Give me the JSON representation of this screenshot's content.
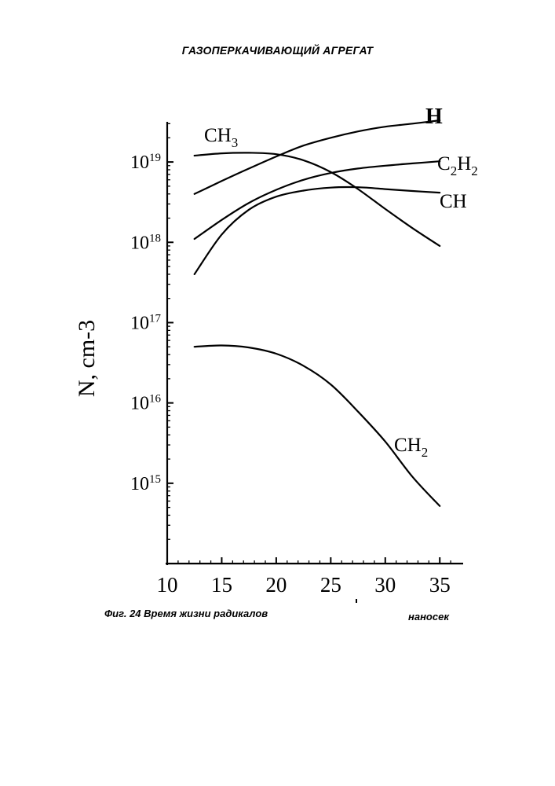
{
  "header": {
    "title": "ГАЗОПЕРКАЧИВАЮЩИЙ АГРЕГАТ"
  },
  "figure": {
    "caption": "Фиг. 24 Время жизни радикалов",
    "x_unit": "наносек"
  },
  "chart_data": {
    "type": "line",
    "ylabel": "N, cm-3",
    "y_scale": "log",
    "xlim": [
      10,
      37
    ],
    "ylim_exponent": [
      14,
      19.5
    ],
    "x_ticks": [
      "10",
      "15",
      "20",
      "25",
      "30",
      "35"
    ],
    "y_ticks": [
      {
        "base": "10",
        "exp": "19"
      },
      {
        "base": "10",
        "exp": "18"
      },
      {
        "base": "10",
        "exp": "17"
      },
      {
        "base": "10",
        "exp": "16"
      },
      {
        "base": "10",
        "exp": "15"
      }
    ],
    "series": [
      {
        "name": "H",
        "x": [
          12.5,
          15,
          17.5,
          20,
          22.5,
          25,
          27.5,
          30,
          32.5,
          35
        ],
        "y": [
          4e+18,
          5.8e+18,
          8.3e+18,
          1.17e+19,
          1.6e+19,
          2e+19,
          2.4e+19,
          2.75e+19,
          3e+19,
          3.3e+19
        ]
      },
      {
        "name": "CH3",
        "x": [
          12.5,
          15,
          17.5,
          20,
          22.5,
          25,
          27.5,
          30,
          32.5,
          35
        ],
        "y": [
          1.2e+19,
          1.28e+19,
          1.3e+19,
          1.25e+19,
          1.05e+19,
          7.5e+18,
          4.6e+18,
          2.6e+18,
          1.5e+18,
          9e+17
        ]
      },
      {
        "name": "C2H2",
        "x": [
          12.5,
          15,
          17.5,
          20,
          22.5,
          25,
          27.5,
          30,
          32.5,
          35
        ],
        "y": [
          1.1e+18,
          1.9e+18,
          3.1e+18,
          4.5e+18,
          6e+18,
          7.3e+18,
          8.3e+18,
          9e+18,
          9.6e+18,
          1.02e+19
        ]
      },
      {
        "name": "CH",
        "x": [
          12.5,
          15,
          17.5,
          20,
          22.5,
          25,
          27.5,
          30,
          32.5,
          35
        ],
        "y": [
          4e+17,
          1.25e+18,
          2.55e+18,
          3.7e+18,
          4.4e+18,
          4.8e+18,
          4.85e+18,
          4.6e+18,
          4.35e+18,
          4.15e+18
        ]
      },
      {
        "name": "CH2",
        "x": [
          12.5,
          15,
          17.5,
          20,
          22.5,
          25,
          27.5,
          30,
          32.5,
          35
        ],
        "y": [
          5e+16,
          5.2e+16,
          4.9e+16,
          4.1e+16,
          2.9e+16,
          1.7e+16,
          7800000000000000.0,
          3300000000000000.0,
          1200000000000000.0,
          520000000000000.0
        ]
      }
    ],
    "series_labels": [
      {
        "series": "H",
        "main": "H",
        "sub": ""
      },
      {
        "series": "CH3",
        "main": "CH",
        "sub": "3"
      },
      {
        "series": "C2H2",
        "main": "C",
        "sub": "2",
        "main2": "H",
        "sub2": "2"
      },
      {
        "series": "CH",
        "main": "CH",
        "sub": ""
      },
      {
        "series": "CH2",
        "main": "CH",
        "sub": "2"
      }
    ],
    "legend": "none",
    "grid": false
  }
}
